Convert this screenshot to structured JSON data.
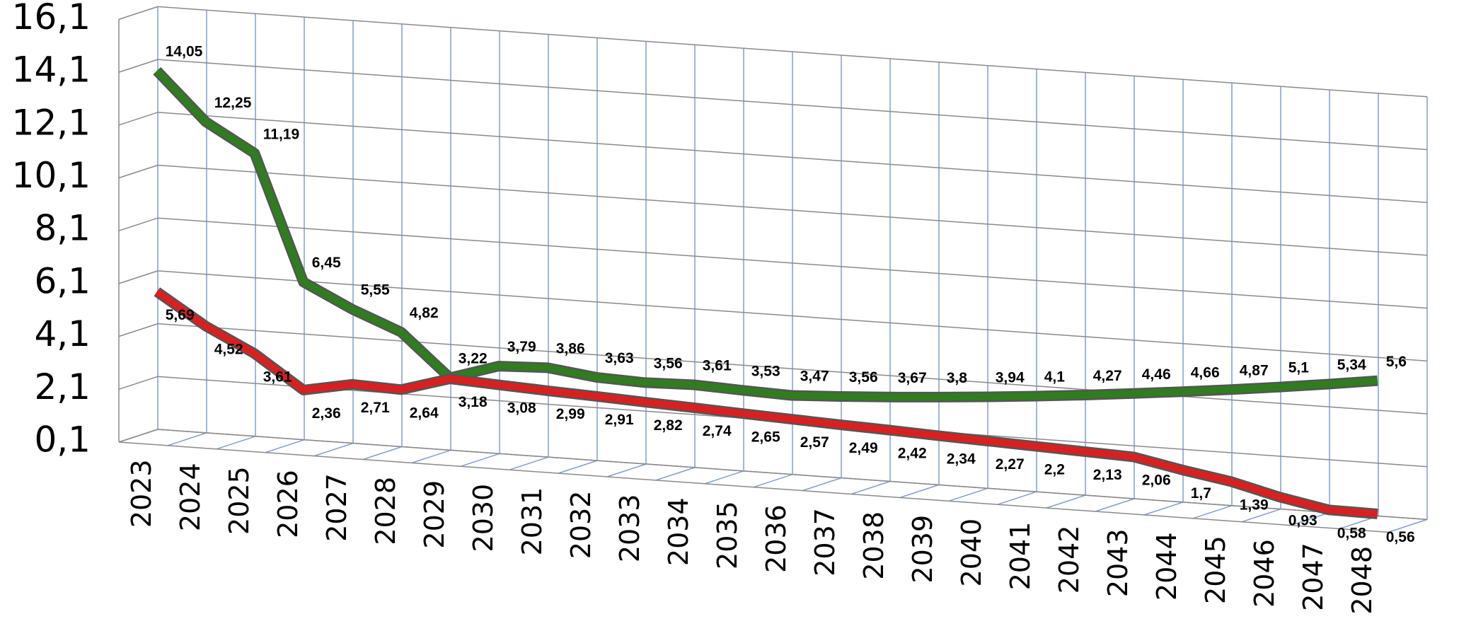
{
  "chart_data": {
    "type": "line3d",
    "categories": [
      "2023",
      "2024",
      "2025",
      "2026",
      "2027",
      "2028",
      "2029",
      "2030",
      "2031",
      "2032",
      "2033",
      "2034",
      "2035",
      "2036",
      "2037",
      "2038",
      "2039",
      "2040",
      "2041",
      "2042",
      "2043",
      "2044",
      "2045",
      "2046",
      "2047",
      "2048"
    ],
    "series": [
      {
        "color": "#2f7d1f",
        "values": [
          14.05,
          12.25,
          11.19,
          6.45,
          5.55,
          4.82,
          3.22,
          3.79,
          3.86,
          3.63,
          3.56,
          3.61,
          3.53,
          3.47,
          3.56,
          3.67,
          3.8,
          3.94,
          4.1,
          4.27,
          4.46,
          4.66,
          4.87,
          5.1,
          5.34,
          5.6
        ],
        "value_labels": [
          "14,05",
          "12,25",
          "11,19",
          "6,45",
          "5,55",
          "4,82",
          "3,22",
          "3,79",
          "3,86",
          "3,63",
          "3,56",
          "3,61",
          "3,53",
          "3,47",
          "3,56",
          "3,67",
          "3,8",
          "3,94",
          "4,1",
          "4,27",
          "4,46",
          "4,66",
          "4,87",
          "5,1",
          "5,34",
          "5,6"
        ]
      },
      {
        "color": "#d92020",
        "values": [
          5.69,
          4.52,
          3.61,
          2.36,
          2.71,
          2.64,
          3.18,
          3.08,
          2.99,
          2.91,
          2.82,
          2.74,
          2.65,
          2.57,
          2.49,
          2.42,
          2.34,
          2.27,
          2.2,
          2.13,
          2.06,
          1.7,
          1.39,
          0.93,
          0.58,
          0.56
        ],
        "value_labels": [
          "5,69",
          "4,52",
          "3,61",
          "2,36",
          "2,71",
          "2,64",
          "3,18",
          "3,08",
          "2,99",
          "2,91",
          "2,82",
          "2,74",
          "2,65",
          "2,57",
          "2,49",
          "2,42",
          "2,34",
          "2,27",
          "2,2",
          "2,13",
          "2,06",
          "1,7",
          "1,39",
          "0,93",
          "0,58",
          "0,56"
        ]
      }
    ],
    "ylim": [
      0.1,
      16.1
    ],
    "yticks": [
      {
        "value": 0.1,
        "label": "0,1"
      },
      {
        "value": 2.1,
        "label": "2,1"
      },
      {
        "value": 4.1,
        "label": "4,1"
      },
      {
        "value": 6.1,
        "label": "6,1"
      },
      {
        "value": 8.1,
        "label": "8,1"
      },
      {
        "value": 10.1,
        "label": "10,1"
      },
      {
        "value": 12.1,
        "label": "12,1"
      },
      {
        "value": 14.1,
        "label": "14,1"
      },
      {
        "value": 16.1,
        "label": "16,1"
      }
    ],
    "grid": true
  }
}
